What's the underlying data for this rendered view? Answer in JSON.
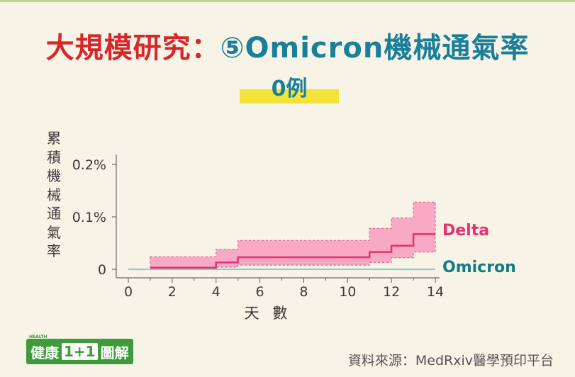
{
  "title": {
    "part1": "大規模研究：",
    "part2": "⑤Omicron機械通氣率"
  },
  "subtitle": "0例",
  "ylabel_chars": [
    "累",
    "積",
    "機",
    "械",
    "通",
    "氣",
    "率"
  ],
  "logo": {
    "health": "HEALTH",
    "text1": "健康",
    "text2": "1+1",
    "text3": "圖解"
  },
  "source": "資料來源：MedRxiv醫學預印平台",
  "colors": {
    "title_red": "#d8262b",
    "title_teal": "#1b7f9a",
    "delta": "#e6316f",
    "delta_band": "#f8a9c3",
    "omicron": "#7ccfd2",
    "omicron_label": "#137c85",
    "highlight": "#f2e33a",
    "logo_green": "#3f9a3a"
  },
  "chart_data": {
    "type": "line",
    "xlabel": "天 數",
    "ylabel": "累積機械通氣率",
    "xlim": [
      0,
      14
    ],
    "ylim": [
      0,
      0.2
    ],
    "x_ticks": [
      0,
      2,
      4,
      6,
      8,
      10,
      12,
      14
    ],
    "y_ticks": [
      {
        "value": 0,
        "label": "0"
      },
      {
        "value": 0.1,
        "label": "0.1%"
      },
      {
        "value": 0.2,
        "label": "0.2%"
      }
    ],
    "series": [
      {
        "name": "Delta",
        "step": true,
        "x": [
          1,
          4,
          5,
          11,
          12,
          13,
          14
        ],
        "y": [
          0.003,
          0.013,
          0.023,
          0.033,
          0.045,
          0.067,
          0.067
        ],
        "ci_lower": [
          0.0,
          0.004,
          0.008,
          0.013,
          0.022,
          0.033,
          0.033
        ],
        "ci_upper": [
          0.024,
          0.038,
          0.055,
          0.078,
          0.098,
          0.128,
          0.128
        ]
      },
      {
        "name": "Omicron",
        "step": true,
        "x": [
          0,
          14
        ],
        "y": [
          0,
          0
        ]
      }
    ]
  }
}
